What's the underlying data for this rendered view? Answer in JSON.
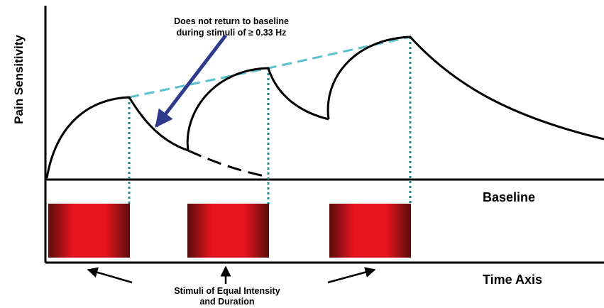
{
  "labels": {
    "y_axis": "Pain Sensitivity",
    "baseline": "Baseline",
    "time_axis": "Time Axis",
    "annotation_line1": "Does not return to baseline",
    "annotation_line2": "during stimuli of ≥ 0.33 Hz",
    "stimuli_line1": "Stimuli of Equal Intensity",
    "stimuli_line2": "and Duration"
  },
  "stimuli": [
    {
      "name": "stimulus-1"
    },
    {
      "name": "stimulus-2"
    },
    {
      "name": "stimulus-3"
    }
  ],
  "colors": {
    "axis": "#000000",
    "curve": "#000000",
    "peak_trend_dashed": "#5bbfcc",
    "peak_marker_dotted": "#1a8a8a",
    "annotation_arrow": "#2e3a8c",
    "stimulus_center": "#e8141e",
    "stimulus_edge": "#5a0c0c"
  }
}
